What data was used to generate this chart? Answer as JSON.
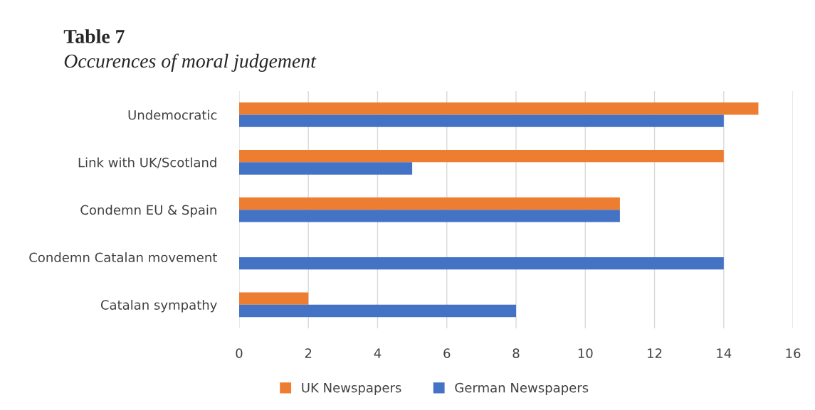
{
  "chart_data": {
    "type": "bar",
    "orientation": "horizontal",
    "title": "Table 7",
    "subtitle": "Occurences of moral judgement",
    "categories": [
      "Undemocratic",
      "Link with UK/Scotland",
      "Condemn EU & Spain",
      "Condemn Catalan movement",
      "Catalan sympathy"
    ],
    "series": [
      {
        "name": "UK Newspapers",
        "color": "#ed7d31",
        "values": [
          15,
          14,
          11,
          null,
          2
        ]
      },
      {
        "name": "German Newspapers",
        "color": "#4472c4",
        "values": [
          14,
          5,
          11,
          14,
          8
        ]
      }
    ],
    "xlim": [
      0,
      16
    ],
    "xticks": [
      0,
      2,
      4,
      6,
      8,
      10,
      12,
      14,
      16
    ],
    "grid": "x",
    "legend": "bottom"
  }
}
